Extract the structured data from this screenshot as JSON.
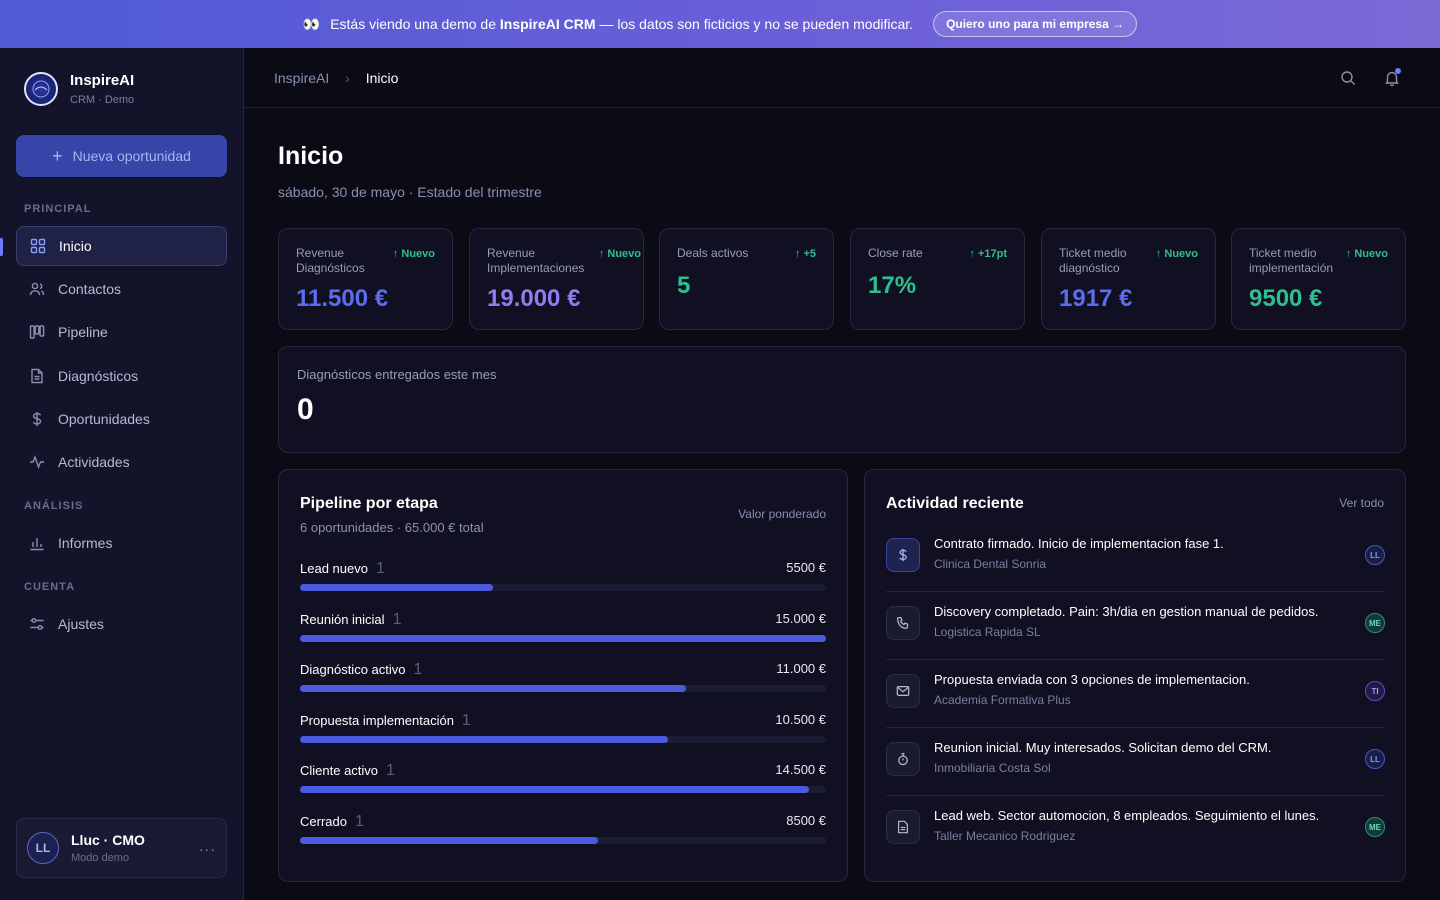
{
  "banner": {
    "eyes": "👀",
    "text_before": "Estás viendo una demo de",
    "brand": "InspireAI CRM",
    "text_after": "— los datos son ficticios y no se pueden modificar.",
    "cta": "Quiero uno para mi empresa →"
  },
  "sidebar": {
    "brand_name": "InspireAI",
    "brand_sub": "CRM · Demo",
    "new_button": "Nueva oportunidad",
    "sections": {
      "principal": "PRINCIPAL",
      "analisis": "ANÁLISIS",
      "cuenta": "CUENTA"
    },
    "items": [
      {
        "label": "Inicio",
        "icon": "grid-icon",
        "active": true
      },
      {
        "label": "Contactos",
        "icon": "users-icon"
      },
      {
        "label": "Pipeline",
        "icon": "kanban-icon"
      },
      {
        "label": "Diagnósticos",
        "icon": "document-icon"
      },
      {
        "label": "Oportunidades",
        "icon": "dollar-icon"
      },
      {
        "label": "Actividades",
        "icon": "activity-icon"
      },
      {
        "label": "Informes",
        "icon": "bar-chart-icon"
      },
      {
        "label": "Ajustes",
        "icon": "sliders-icon"
      }
    ],
    "user": {
      "initials": "LL",
      "name": "Lluc · CMO",
      "sub": "Modo demo",
      "more": "···"
    }
  },
  "header": {
    "breadcrumb_root": "InspireAI",
    "breadcrumb_sep": "›",
    "breadcrumb_current": "Inicio"
  },
  "page": {
    "title": "Inicio",
    "subtitle": "sábado, 30 de mayo · Estado del trimestre"
  },
  "kpis": [
    {
      "label": "Revenue Diagnósticos",
      "delta": "↑ Nuevo",
      "value": "11.500 €",
      "color": "#5b6cf0"
    },
    {
      "label": "Revenue Implementaciones",
      "delta": "↑ Nuevo",
      "value": "19.000 €",
      "color": "#8f7cf0"
    },
    {
      "label": "Deals activos",
      "delta": "↑ +5",
      "value": "5",
      "color": "#2fbf8f"
    },
    {
      "label": "Close rate",
      "delta": "↑ +17pt",
      "value": "17%",
      "color": "#2fbf8f"
    },
    {
      "label": "Ticket medio diagnóstico",
      "delta": "↑ Nuevo",
      "value": "1917 €",
      "color": "#5b6cf0"
    },
    {
      "label": "Ticket medio implementación",
      "delta": "↑ Nuevo",
      "value": "9500 €",
      "color": "#2fbf8f"
    }
  ],
  "diagnostics": {
    "label": "Diagnósticos entregados este mes",
    "value": "0"
  },
  "pipeline": {
    "title": "Pipeline por etapa",
    "subtitle": "6 oportunidades · 65.000 € total",
    "right_label": "Valor ponderado",
    "stages": [
      {
        "name": "Lead nuevo",
        "count": "1",
        "value": "5500 €",
        "fill": 0.367
      },
      {
        "name": "Reunión inicial",
        "count": "1",
        "value": "15.000 €",
        "fill": 1.0
      },
      {
        "name": "Diagnóstico activo",
        "count": "1",
        "value": "11.000 €",
        "fill": 0.733
      },
      {
        "name": "Propuesta implementación",
        "count": "1",
        "value": "10.500 €",
        "fill": 0.7
      },
      {
        "name": "Cliente activo",
        "count": "1",
        "value": "14.500 €",
        "fill": 0.967
      },
      {
        "name": "Cerrado",
        "count": "1",
        "value": "8500 €",
        "fill": 0.567
      }
    ]
  },
  "activity": {
    "title": "Actividad reciente",
    "view_all": "Ver todo",
    "items": [
      {
        "icon": "dollar-icon",
        "title": "Contrato firmado. Inicio de implementacion fase 1.",
        "sub": "Clinica Dental Sonria",
        "avatar": "LL"
      },
      {
        "icon": "phone-icon",
        "title": "Discovery completado. Pain: 3h/dia en gestion manual de pedidos.",
        "sub": "Logistica Rapida SL",
        "avatar": "ME"
      },
      {
        "icon": "mail-icon",
        "title": "Propuesta enviada con 3 opciones de implementacion.",
        "sub": "Academia Formativa Plus",
        "avatar": "TI"
      },
      {
        "icon": "stopwatch-icon",
        "title": "Reunion inicial. Muy interesados. Solicitan demo del CRM.",
        "sub": "Inmobiliaria Costa Sol",
        "avatar": "LL"
      },
      {
        "icon": "note-icon",
        "title": "Lead web. Sector automocion, 8 empleados. Seguimiento el lunes.",
        "sub": "Taller Mecanico Rodriguez",
        "avatar": "ME"
      }
    ]
  }
}
